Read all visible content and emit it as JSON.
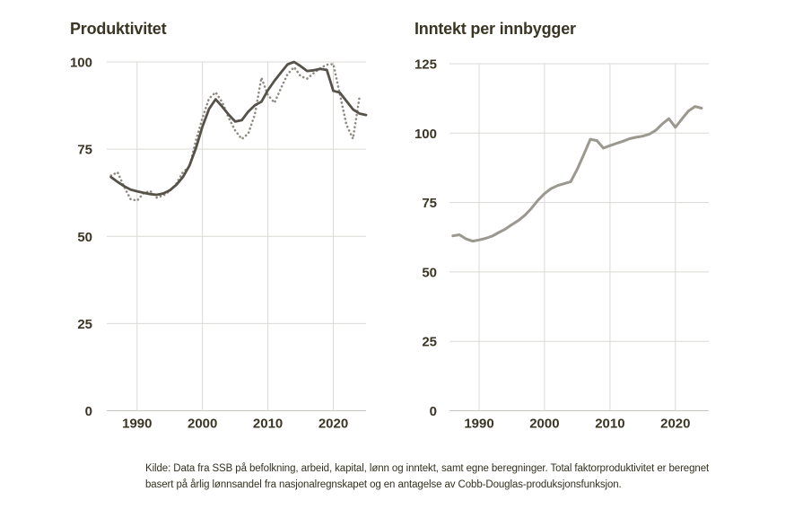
{
  "page": {
    "background": "#ffffff"
  },
  "colors": {
    "title_text": "#3a3524",
    "tick_text": "#3a3524",
    "grid": "#dbd9d4",
    "axis": "#c7c5bf",
    "productivity_solid_line": "#56524a",
    "productivity_dotted_line": "#8d8a82",
    "income_line": "#9b9890",
    "caption_text": "#32301f"
  },
  "caption": "Kilde: Data fra SSB på befolkning, arbeid, kapital, lønn og inntekt, samt egne beregninger. Total faktorproduktivitet er beregnet basert på årlig lønnsandel fra nasjonalregnskapet og en antagelse av Cobb-Douglas-produksjonsfunksjon.",
  "chart_data": [
    {
      "type": "line",
      "title": "Produktivitet",
      "xlabel": "",
      "ylabel": "",
      "xlim": [
        1985.36,
        2025.0
      ],
      "ylim": [
        0,
        100
      ],
      "xticks": [
        1990,
        2000,
        2010,
        2020
      ],
      "yticks": [
        0,
        25,
        50,
        75,
        100
      ],
      "grid": true,
      "legend": "none",
      "series": [
        {
          "name": "dotted",
          "line_style": "dotted",
          "color": "#8d8a82",
          "x": [
            1986,
            1987,
            1988,
            1989,
            1990,
            1991,
            1992,
            1993,
            1994,
            1995,
            1996,
            1997,
            1998,
            1999,
            2000,
            2001,
            2002,
            2003,
            2004,
            2005,
            2006,
            2007,
            2008,
            2009,
            2010,
            2011,
            2012,
            2013,
            2014,
            2015,
            2016,
            2017,
            2018,
            2019,
            2020,
            2021,
            2022,
            2023,
            2024
          ],
          "values": [
            67.4,
            68.4,
            64.3,
            60.7,
            60.2,
            62.4,
            63.0,
            61.1,
            61.7,
            63.0,
            65.1,
            68.4,
            70.0,
            77.5,
            84.0,
            89.5,
            91.3,
            88.5,
            84.0,
            80.3,
            77.9,
            79.5,
            85.0,
            95.5,
            90.5,
            88.3,
            92.5,
            96.5,
            98.5,
            95.9,
            95.2,
            96.8,
            98.2,
            99.2,
            99.4,
            90.8,
            82.0,
            78.0,
            89.9
          ]
        },
        {
          "name": "solid",
          "line_style": "solid",
          "color": "#56524a",
          "x": [
            1986,
            1987,
            1988,
            1989,
            1990,
            1991,
            1992,
            1993,
            1994,
            1995,
            1996,
            1997,
            1998,
            1999,
            2000,
            2001,
            2002,
            2003,
            2004,
            2005,
            2006,
            2007,
            2008,
            2009,
            2010,
            2011,
            2012,
            2013,
            2014,
            2015,
            2016,
            2017,
            2018,
            2019,
            2020,
            2021,
            2022,
            2023,
            2024,
            2025
          ],
          "values": [
            67.0,
            65.6,
            64.4,
            63.4,
            62.9,
            62.5,
            62.1,
            61.9,
            62.3,
            63.2,
            64.8,
            67.0,
            70.3,
            75.3,
            81.5,
            86.5,
            89.3,
            87.2,
            84.9,
            82.9,
            83.3,
            85.8,
            87.6,
            88.6,
            91.9,
            94.6,
            97.0,
            99.3,
            100.0,
            98.8,
            97.4,
            97.6,
            98.0,
            97.7,
            91.7,
            91.2,
            88.8,
            86.4,
            85.2,
            84.8
          ]
        }
      ]
    },
    {
      "type": "line",
      "title": "Inntekt per innbygger",
      "xlabel": "",
      "ylabel": "",
      "xlim": [
        1985.48,
        2025.1
      ],
      "ylim": [
        0,
        125
      ],
      "xticks": [
        1990,
        2000,
        2010,
        2020
      ],
      "yticks": [
        0,
        25,
        50,
        75,
        100,
        125
      ],
      "grid": true,
      "legend": "none",
      "series": [
        {
          "name": "income",
          "line_style": "solid",
          "color": "#9b9890",
          "width": 3,
          "x": [
            1986,
            1987,
            1988,
            1989,
            1990,
            1991,
            1992,
            1993,
            1994,
            1995,
            1996,
            1997,
            1998,
            1999,
            2000,
            2001,
            2002,
            2003,
            2004,
            2005,
            2006,
            2007,
            2008,
            2009,
            2010,
            2011,
            2012,
            2013,
            2014,
            2015,
            2016,
            2017,
            2018,
            2019,
            2020,
            2021,
            2022,
            2023,
            2024
          ],
          "values": [
            63.0,
            63.4,
            61.9,
            61.1,
            61.5,
            62.1,
            62.9,
            64.2,
            65.4,
            67.0,
            68.5,
            70.4,
            72.9,
            75.8,
            78.2,
            80.0,
            81.1,
            81.8,
            82.5,
            87.0,
            92.3,
            97.8,
            97.3,
            94.6,
            95.5,
            96.3,
            97.1,
            98.0,
            98.5,
            98.9,
            99.6,
            101.0,
            103.3,
            105.2,
            102.1,
            105.1,
            108.0,
            109.6,
            109.0
          ]
        }
      ]
    }
  ]
}
